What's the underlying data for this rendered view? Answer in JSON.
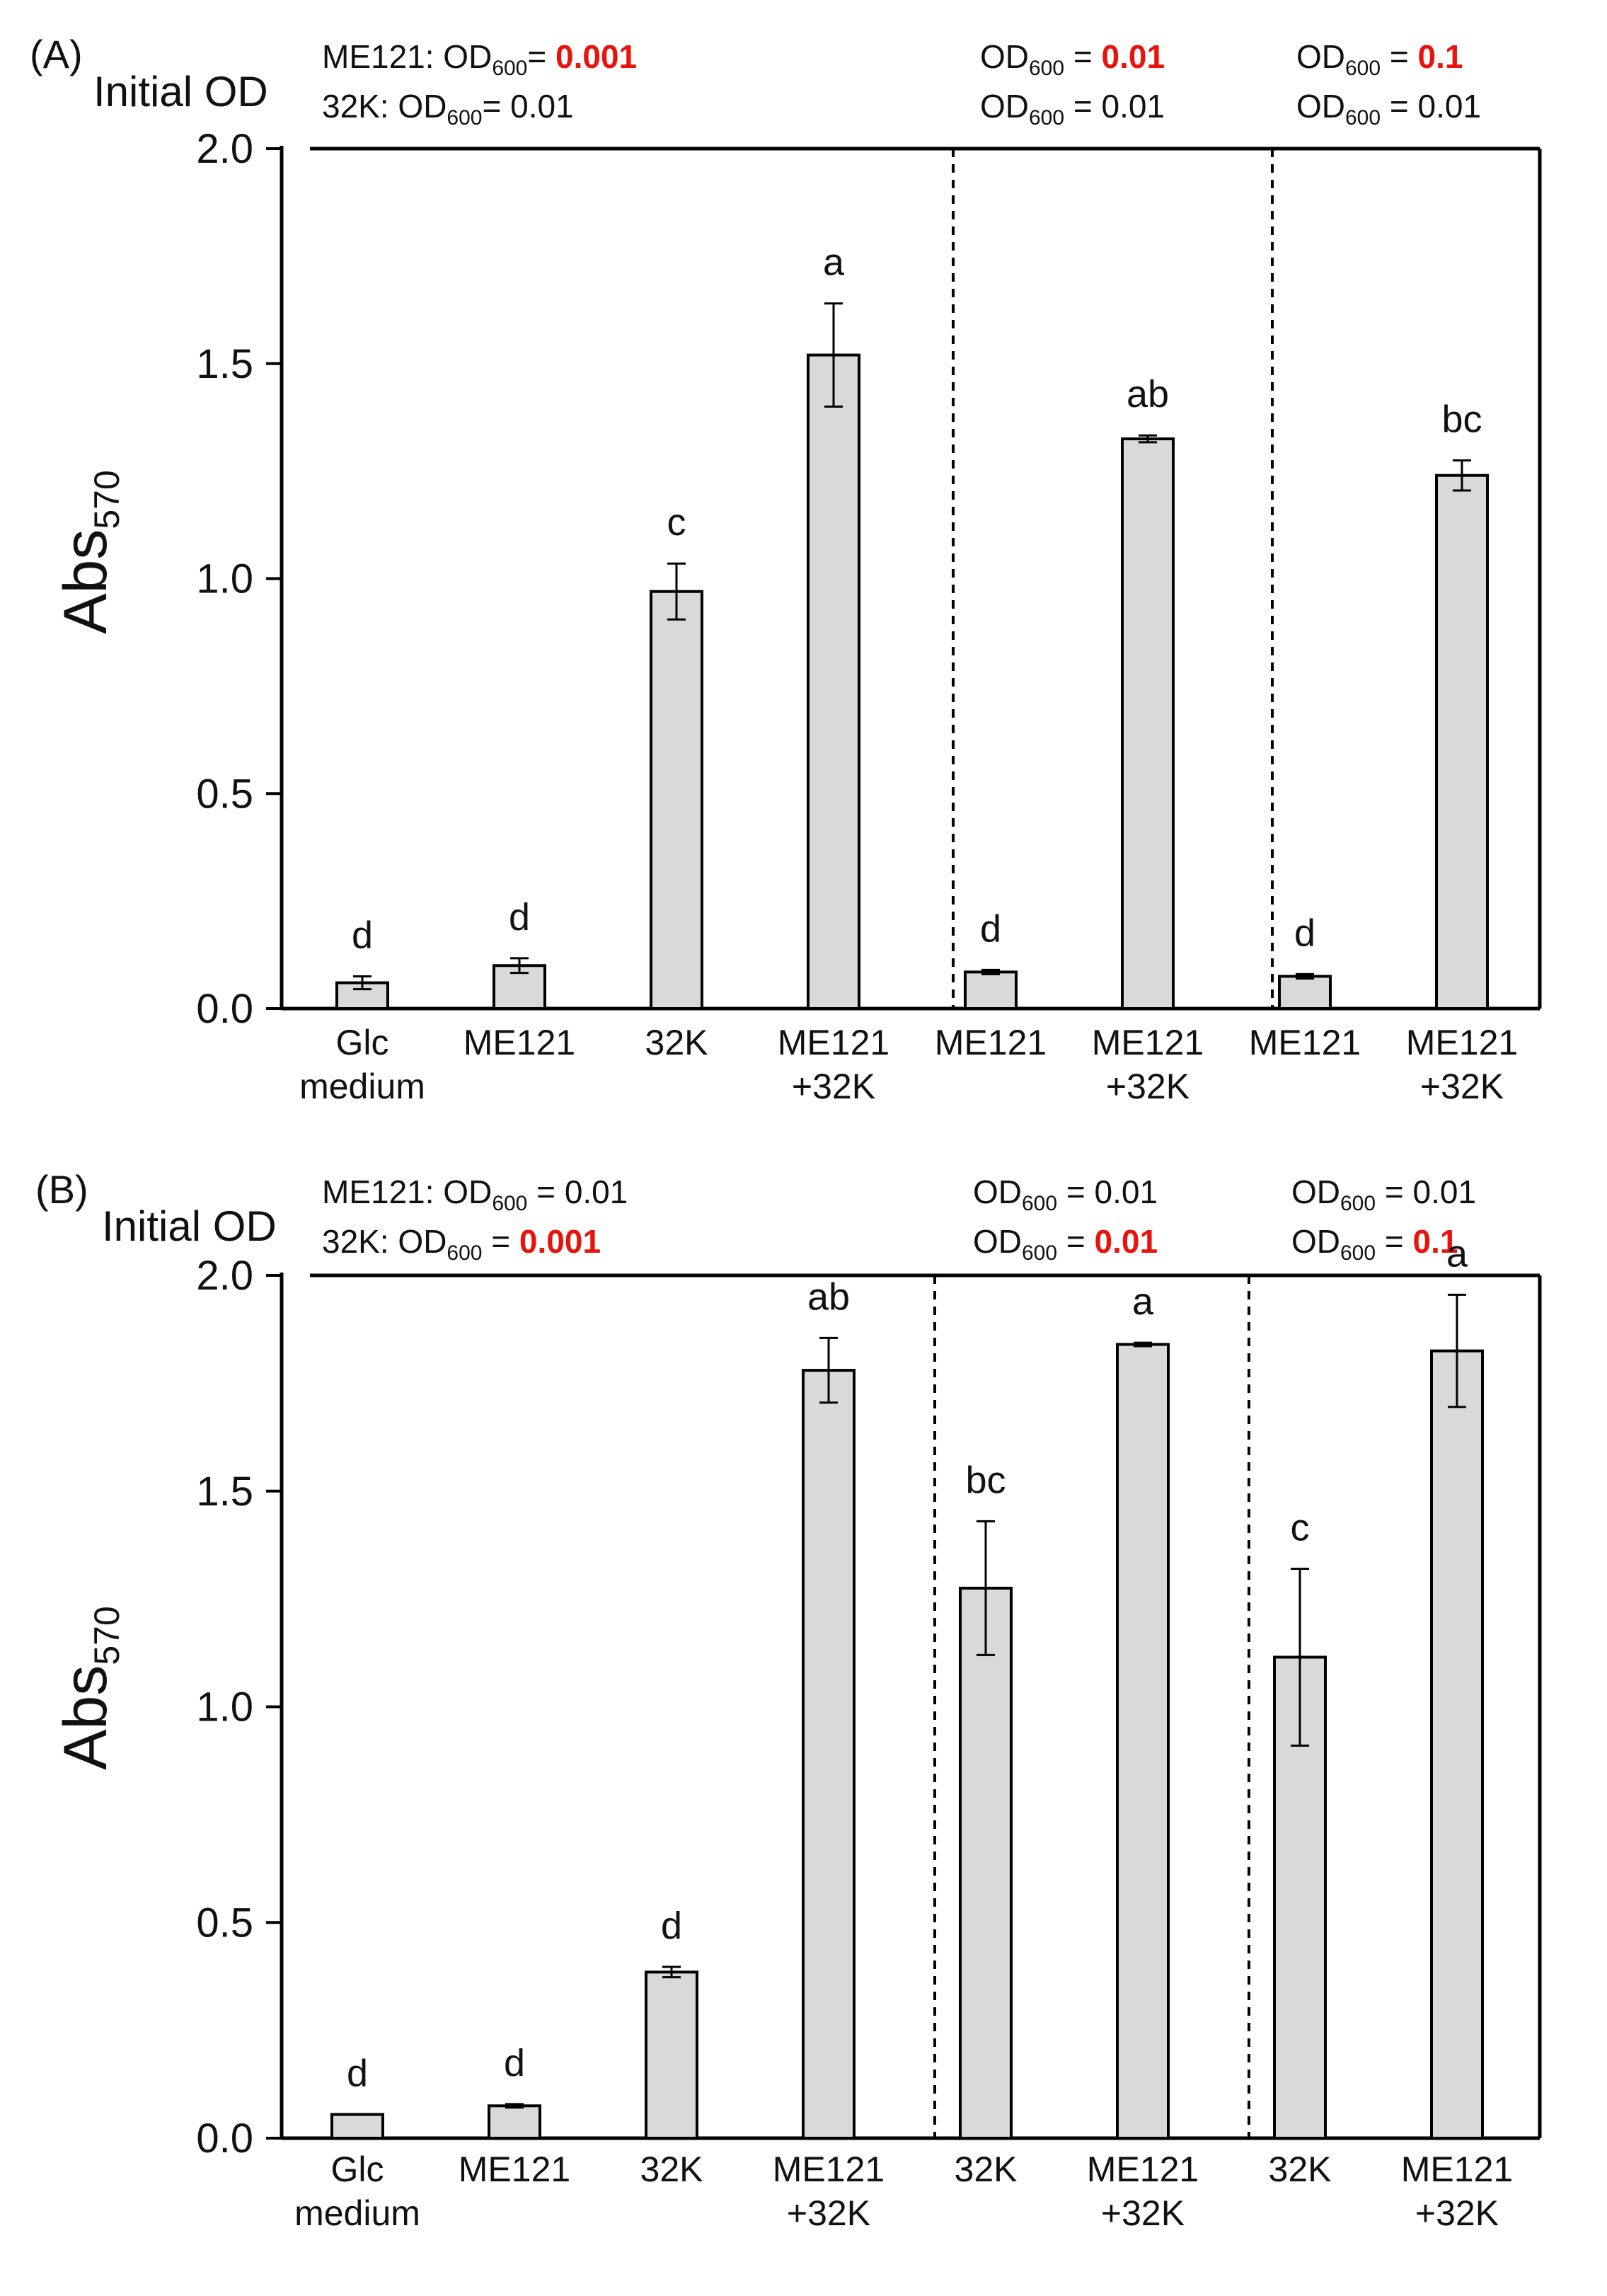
{
  "chart_data": [
    {
      "type": "bar",
      "panel_label": "(A)",
      "initial_od_label": "Initial OD",
      "conditions": [
        {
          "lines": [
            {
              "prefix": "ME121: OD",
              "sub": "600",
              "eq": "= ",
              "value": "0.001",
              "highlight": true
            },
            {
              "prefix": "32K: OD",
              "sub": "600",
              "eq": "= ",
              "value": "0.01",
              "highlight": false
            }
          ]
        },
        {
          "lines": [
            {
              "prefix": "OD",
              "sub": "600",
              "eq": " = ",
              "value": "0.01",
              "highlight": true
            },
            {
              "prefix": "OD",
              "sub": "600",
              "eq": " = ",
              "value": "0.01",
              "highlight": false
            }
          ]
        },
        {
          "lines": [
            {
              "prefix": "OD",
              "sub": "600",
              "eq": " = ",
              "value": "0.1",
              "highlight": true
            },
            {
              "prefix": "OD",
              "sub": "600",
              "eq": " = ",
              "value": "0.01",
              "highlight": false
            }
          ]
        }
      ],
      "ylabel": "Abs",
      "ylabel_sub": "570",
      "ylim": [
        0,
        2.0
      ],
      "yticks": [
        "0.0",
        "0.5",
        "1.0",
        "1.5",
        "2.0"
      ],
      "group_sizes": [
        4,
        2,
        2
      ],
      "categories": [
        [
          "Glc",
          "medium"
        ],
        [
          "ME121"
        ],
        [
          "32K"
        ],
        [
          "ME121",
          "+32K"
        ],
        [
          "ME121"
        ],
        [
          "ME121",
          "+32K"
        ],
        [
          "ME121"
        ],
        [
          "ME121",
          "+32K"
        ]
      ],
      "values": [
        0.06,
        0.1,
        0.97,
        1.52,
        0.085,
        1.325,
        0.075,
        1.24
      ],
      "errors": [
        0.015,
        0.017,
        0.065,
        0.12,
        0.005,
        0.008,
        0.005,
        0.035
      ],
      "significance": [
        "d",
        "d",
        "c",
        "a",
        "d",
        "ab",
        "d",
        "bc"
      ]
    },
    {
      "type": "bar",
      "panel_label": "(B)",
      "initial_od_label": "Initial OD",
      "conditions": [
        {
          "lines": [
            {
              "prefix": "ME121: OD",
              "sub": "600",
              "eq": " = ",
              "value": "0.01",
              "highlight": false
            },
            {
              "prefix": "32K: OD",
              "sub": "600",
              "eq": " = ",
              "value": "0.001",
              "highlight": true
            }
          ]
        },
        {
          "lines": [
            {
              "prefix": "OD",
              "sub": "600",
              "eq": " = ",
              "value": "0.01",
              "highlight": false
            },
            {
              "prefix": "OD",
              "sub": "600",
              "eq": " = ",
              "value": "0.01",
              "highlight": true
            }
          ]
        },
        {
          "lines": [
            {
              "prefix": "OD",
              "sub": "600",
              "eq": " = ",
              "value": "0.01",
              "highlight": false
            },
            {
              "prefix": "OD",
              "sub": "600",
              "eq": " = ",
              "value": "0.1",
              "highlight": true
            }
          ]
        }
      ],
      "ylabel": "Abs",
      "ylabel_sub": "570",
      "ylim": [
        0,
        2.0
      ],
      "yticks": [
        "0.0",
        "0.5",
        "1.0",
        "1.5",
        "2.0"
      ],
      "group_sizes": [
        4,
        2,
        2
      ],
      "categories": [
        [
          "Glc",
          "medium"
        ],
        [
          "ME121"
        ],
        [
          "32K"
        ],
        [
          "ME121",
          "+32K"
        ],
        [
          "32K"
        ],
        [
          "ME121",
          "+32K"
        ],
        [
          "32K"
        ],
        [
          "ME121",
          "+32K"
        ]
      ],
      "values": [
        0.055,
        0.075,
        0.385,
        1.78,
        1.275,
        1.84,
        1.115,
        1.825
      ],
      "errors": [
        0.0,
        0.004,
        0.012,
        0.075,
        0.155,
        0.004,
        0.205,
        0.13
      ],
      "significance": [
        "d",
        "d",
        "d",
        "ab",
        "bc",
        "a",
        "c",
        "a"
      ]
    }
  ]
}
